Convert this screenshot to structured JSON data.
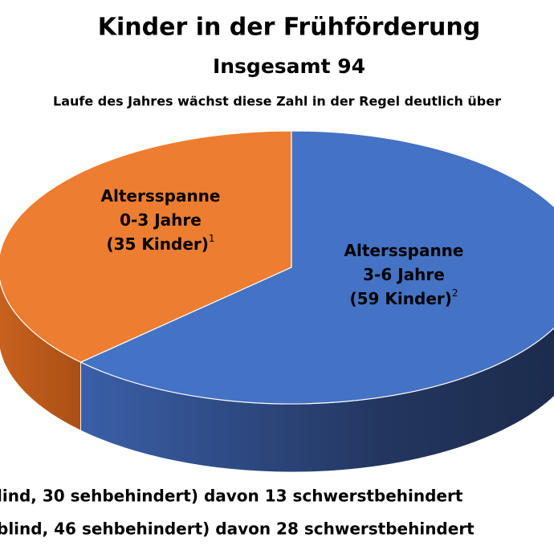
{
  "chart_data": {
    "type": "pie",
    "title": "Kinder in der Frühförderung",
    "subtitle": "Insgesamt 94",
    "note": "Laufe des Jahres wächst diese Zahl in der Regel deutlich über",
    "categories": [
      "Altersspanne 0-3 Jahre",
      "Altersspanne 3-6 Jahre"
    ],
    "values": [
      35,
      59
    ],
    "value_labels": [
      "(35 Kinder)",
      "(59 Kinder)"
    ],
    "footnote_marks": [
      "1",
      "2"
    ],
    "colors": [
      "#ed7d31",
      "#4472c4"
    ],
    "footnotes": [
      "lind, 30 sehbehindert) davon 13 schwerstbehindert",
      "blind, 46 sehbehindert) davon 28 schwerstbehindert"
    ]
  }
}
